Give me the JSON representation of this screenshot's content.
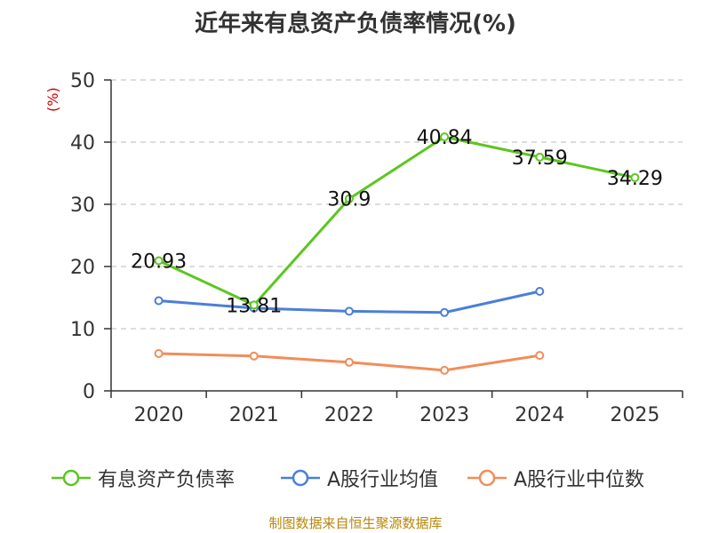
{
  "title": "近年来有息资产负债率情况(%)",
  "unit_label": "(%)",
  "source": "制图数据来自恒生聚源数据库",
  "colors": {
    "debt_ratio": "#5cc620",
    "industry_mean": "#4a7fd8",
    "industry_median": "#f28c5a",
    "grid": "#bbbbbb",
    "axis": "#333333",
    "unit": "#cc0000",
    "source": "#b8860b"
  },
  "chart_data": {
    "type": "line",
    "title": "近年来有息资产负债率情况(%)",
    "ylabel": "(%)",
    "xlabel": "",
    "categories": [
      "2020",
      "2021",
      "2022",
      "2023",
      "2024",
      "2025"
    ],
    "ylim": [
      0,
      50
    ],
    "yticks": [
      0,
      10,
      20,
      30,
      40,
      50
    ],
    "grid": true,
    "legend_position": "bottom",
    "series": [
      {
        "name": "有息资产负债率",
        "values": [
          20.93,
          13.81,
          30.9,
          40.84,
          37.59,
          34.29
        ],
        "labels": [
          "20.93",
          "13.81",
          "30.9",
          "40.84",
          "37.59",
          "34.29"
        ]
      },
      {
        "name": "A股行业均值",
        "values": [
          14.5,
          13.3,
          12.8,
          12.6,
          16.0,
          null
        ]
      },
      {
        "name": "A股行业中位数",
        "values": [
          6.0,
          5.6,
          4.6,
          3.3,
          5.7,
          null
        ]
      }
    ]
  }
}
